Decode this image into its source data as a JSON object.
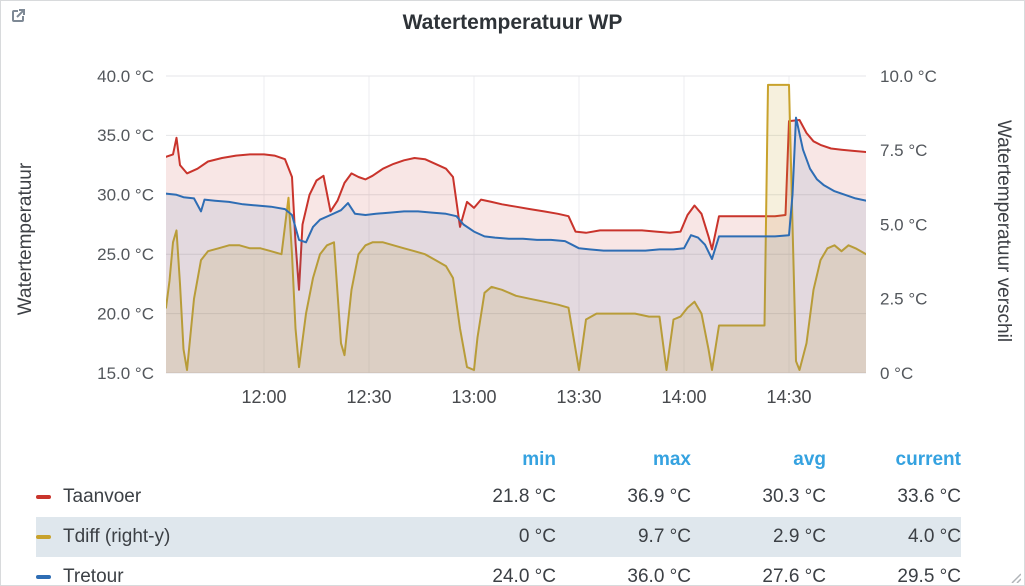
{
  "panel": {
    "title": "Watertemperatuur WP"
  },
  "chart_data": {
    "type": "line",
    "title": "Watertemperatuur WP",
    "x_axis": {
      "range": [
        0,
        200
      ],
      "ticks": [
        {
          "t": 28,
          "label": "12:00"
        },
        {
          "t": 58,
          "label": "12:30"
        },
        {
          "t": 88,
          "label": "13:00"
        },
        {
          "t": 118,
          "label": "13:30"
        },
        {
          "t": 148,
          "label": "14:00"
        },
        {
          "t": 178,
          "label": "14:30"
        }
      ]
    },
    "y_left": {
      "label": "Watertemperatuur",
      "range": [
        15,
        40
      ],
      "ticks": [
        {
          "v": 40,
          "label": "40.0 °C"
        },
        {
          "v": 35,
          "label": "35.0 °C"
        },
        {
          "v": 30,
          "label": "30.0 °C"
        },
        {
          "v": 25,
          "label": "25.0 °C"
        },
        {
          "v": 20,
          "label": "20.0 °C"
        },
        {
          "v": 15,
          "label": "15.0 °C"
        }
      ]
    },
    "y_right": {
      "label": "Watertemperatuur verschil",
      "range": [
        0,
        10
      ],
      "ticks": [
        {
          "v": 10,
          "label": "10.0 °C"
        },
        {
          "v": 7.5,
          "label": "7.5 °C"
        },
        {
          "v": 5,
          "label": "5.0 °C"
        },
        {
          "v": 2.5,
          "label": "2.5 °C"
        },
        {
          "v": 0,
          "label": "0 °C"
        }
      ]
    },
    "series": [
      {
        "name": "Taanvoer",
        "axis": "left",
        "color": "#c9342c",
        "fill_opacity": 0.12,
        "points": [
          [
            0,
            33.2
          ],
          [
            2,
            33.4
          ],
          [
            3,
            34.8
          ],
          [
            4,
            32.5
          ],
          [
            6,
            31.8
          ],
          [
            9,
            32.2
          ],
          [
            12,
            32.8
          ],
          [
            16,
            33.1
          ],
          [
            20,
            33.3
          ],
          [
            24,
            33.4
          ],
          [
            28,
            33.4
          ],
          [
            31,
            33.3
          ],
          [
            34,
            33.0
          ],
          [
            36,
            31.5
          ],
          [
            37,
            26.0
          ],
          [
            38,
            22.0
          ],
          [
            39,
            27.5
          ],
          [
            41,
            30.0
          ],
          [
            43,
            31.2
          ],
          [
            45,
            31.6
          ],
          [
            47,
            28.6
          ],
          [
            49,
            29.5
          ],
          [
            51,
            31.0
          ],
          [
            53,
            31.8
          ],
          [
            55,
            31.5
          ],
          [
            57,
            31.3
          ],
          [
            59,
            31.6
          ],
          [
            62,
            32.2
          ],
          [
            65,
            32.6
          ],
          [
            68,
            32.9
          ],
          [
            71,
            33.1
          ],
          [
            74,
            33.0
          ],
          [
            77,
            32.6
          ],
          [
            80,
            32.2
          ],
          [
            82,
            31.5
          ],
          [
            84,
            27.3
          ],
          [
            86,
            29.4
          ],
          [
            88,
            28.9
          ],
          [
            90,
            29.6
          ],
          [
            93,
            29.4
          ],
          [
            96,
            29.2
          ],
          [
            100,
            29.0
          ],
          [
            104,
            28.8
          ],
          [
            108,
            28.6
          ],
          [
            112,
            28.4
          ],
          [
            115,
            28.2
          ],
          [
            117,
            26.9
          ],
          [
            120,
            26.8
          ],
          [
            124,
            27.0
          ],
          [
            128,
            27.0
          ],
          [
            132,
            27.0
          ],
          [
            136,
            27.0
          ],
          [
            140,
            26.9
          ],
          [
            144,
            26.8
          ],
          [
            147,
            26.9
          ],
          [
            149,
            28.3
          ],
          [
            151,
            29.1
          ],
          [
            153,
            28.4
          ],
          [
            155,
            26.5
          ],
          [
            156,
            25.4
          ],
          [
            158,
            28.2
          ],
          [
            162,
            28.2
          ],
          [
            166,
            28.2
          ],
          [
            170,
            28.2
          ],
          [
            174,
            28.2
          ],
          [
            177,
            28.3
          ],
          [
            178,
            36.2
          ],
          [
            181,
            36.3
          ],
          [
            183,
            35.2
          ],
          [
            185,
            34.5
          ],
          [
            187,
            34.2
          ],
          [
            190,
            33.9
          ],
          [
            193,
            33.8
          ],
          [
            196,
            33.7
          ],
          [
            200,
            33.6
          ]
        ]
      },
      {
        "name": "Tdiff",
        "axis": "right",
        "color": "#c8a22c",
        "fill_opacity": 0.16,
        "points": [
          [
            0,
            2.2
          ],
          [
            1,
            3.1
          ],
          [
            2,
            4.4
          ],
          [
            3,
            4.8
          ],
          [
            4,
            3.0
          ],
          [
            5,
            0.8
          ],
          [
            6,
            0.1
          ],
          [
            8,
            2.5
          ],
          [
            10,
            3.8
          ],
          [
            12,
            4.1
          ],
          [
            15,
            4.2
          ],
          [
            18,
            4.3
          ],
          [
            21,
            4.3
          ],
          [
            24,
            4.2
          ],
          [
            27,
            4.2
          ],
          [
            30,
            4.1
          ],
          [
            33,
            4.0
          ],
          [
            35,
            5.9
          ],
          [
            36,
            4.0
          ],
          [
            37,
            1.5
          ],
          [
            38,
            0.2
          ],
          [
            40,
            2.0
          ],
          [
            42,
            3.2
          ],
          [
            44,
            4.0
          ],
          [
            46,
            4.3
          ],
          [
            48,
            4.4
          ],
          [
            50,
            1.0
          ],
          [
            51,
            0.6
          ],
          [
            53,
            2.8
          ],
          [
            55,
            4.0
          ],
          [
            57,
            4.3
          ],
          [
            59,
            4.4
          ],
          [
            62,
            4.4
          ],
          [
            65,
            4.3
          ],
          [
            68,
            4.2
          ],
          [
            71,
            4.1
          ],
          [
            74,
            4.0
          ],
          [
            77,
            3.8
          ],
          [
            80,
            3.6
          ],
          [
            82,
            3.2
          ],
          [
            84,
            1.5
          ],
          [
            86,
            0.2
          ],
          [
            88,
            0.1
          ],
          [
            89,
            1.2
          ],
          [
            91,
            2.7
          ],
          [
            93,
            2.9
          ],
          [
            96,
            2.8
          ],
          [
            100,
            2.6
          ],
          [
            104,
            2.5
          ],
          [
            108,
            2.4
          ],
          [
            112,
            2.3
          ],
          [
            115,
            2.2
          ],
          [
            117,
            0.8
          ],
          [
            118,
            0.1
          ],
          [
            120,
            1.8
          ],
          [
            123,
            2.0
          ],
          [
            126,
            2.0
          ],
          [
            130,
            2.0
          ],
          [
            134,
            2.0
          ],
          [
            138,
            1.9
          ],
          [
            141,
            1.9
          ],
          [
            143,
            0.1
          ],
          [
            145,
            1.8
          ],
          [
            147,
            1.9
          ],
          [
            149,
            2.2
          ],
          [
            151,
            2.4
          ],
          [
            153,
            2.0
          ],
          [
            155,
            0.8
          ],
          [
            156,
            0.1
          ],
          [
            158,
            1.6
          ],
          [
            162,
            1.6
          ],
          [
            166,
            1.6
          ],
          [
            170,
            1.6
          ],
          [
            171,
            1.6
          ],
          [
            172,
            9.7
          ],
          [
            178,
            9.7
          ],
          [
            179,
            5.0
          ],
          [
            180,
            0.4
          ],
          [
            181,
            0.1
          ],
          [
            183,
            1.0
          ],
          [
            185,
            2.8
          ],
          [
            187,
            3.8
          ],
          [
            189,
            4.2
          ],
          [
            191,
            4.3
          ],
          [
            193,
            4.1
          ],
          [
            195,
            4.3
          ],
          [
            197,
            4.2
          ],
          [
            200,
            4.0
          ]
        ]
      },
      {
        "name": "Tretour",
        "axis": "left",
        "color": "#2e6db4",
        "fill_opacity": 0.1,
        "points": [
          [
            0,
            30.1
          ],
          [
            3,
            30.0
          ],
          [
            5,
            29.8
          ],
          [
            8,
            29.7
          ],
          [
            10,
            28.6
          ],
          [
            11,
            29.6
          ],
          [
            14,
            29.5
          ],
          [
            18,
            29.4
          ],
          [
            22,
            29.2
          ],
          [
            26,
            29.1
          ],
          [
            30,
            29.0
          ],
          [
            34,
            28.8
          ],
          [
            36,
            28.3
          ],
          [
            38,
            26.2
          ],
          [
            40,
            26.0
          ],
          [
            42,
            27.3
          ],
          [
            44,
            27.9
          ],
          [
            47,
            28.3
          ],
          [
            50,
            28.7
          ],
          [
            52,
            29.3
          ],
          [
            54,
            28.4
          ],
          [
            57,
            28.3
          ],
          [
            60,
            28.4
          ],
          [
            64,
            28.5
          ],
          [
            68,
            28.6
          ],
          [
            72,
            28.6
          ],
          [
            76,
            28.5
          ],
          [
            80,
            28.4
          ],
          [
            83,
            28.2
          ],
          [
            85,
            27.5
          ],
          [
            88,
            26.9
          ],
          [
            91,
            26.5
          ],
          [
            94,
            26.4
          ],
          [
            98,
            26.3
          ],
          [
            102,
            26.3
          ],
          [
            106,
            26.2
          ],
          [
            110,
            26.2
          ],
          [
            114,
            26.1
          ],
          [
            116,
            25.8
          ],
          [
            118,
            25.5
          ],
          [
            121,
            25.4
          ],
          [
            125,
            25.3
          ],
          [
            129,
            25.3
          ],
          [
            133,
            25.3
          ],
          [
            137,
            25.3
          ],
          [
            141,
            25.4
          ],
          [
            145,
            25.4
          ],
          [
            148,
            25.5
          ],
          [
            150,
            26.6
          ],
          [
            152,
            26.4
          ],
          [
            154,
            25.8
          ],
          [
            156,
            24.6
          ],
          [
            158,
            26.5
          ],
          [
            162,
            26.5
          ],
          [
            166,
            26.5
          ],
          [
            170,
            26.5
          ],
          [
            174,
            26.5
          ],
          [
            178,
            26.6
          ],
          [
            179,
            30.0
          ],
          [
            180,
            36.5
          ],
          [
            182,
            33.8
          ],
          [
            184,
            32.2
          ],
          [
            186,
            31.3
          ],
          [
            188,
            30.8
          ],
          [
            191,
            30.3
          ],
          [
            194,
            30.0
          ],
          [
            197,
            29.7
          ],
          [
            200,
            29.5
          ]
        ]
      }
    ]
  },
  "legend": {
    "columns": [
      "min",
      "max",
      "avg",
      "current"
    ],
    "rows": [
      {
        "name": "Taanvoer",
        "color": "#c9342c",
        "highlight": false,
        "values": [
          "21.8 °C",
          "36.9 °C",
          "30.3 °C",
          "33.6 °C"
        ]
      },
      {
        "name": "Tdiff (right-y)",
        "color": "#c8a22c",
        "highlight": true,
        "values": [
          "0 °C",
          "9.7 °C",
          "2.9 °C",
          "4.0 °C"
        ]
      },
      {
        "name": "Tretour",
        "color": "#2e6db4",
        "highlight": false,
        "values": [
          "24.0 °C",
          "36.0 °C",
          "27.6 °C",
          "29.5 °C"
        ]
      }
    ]
  }
}
